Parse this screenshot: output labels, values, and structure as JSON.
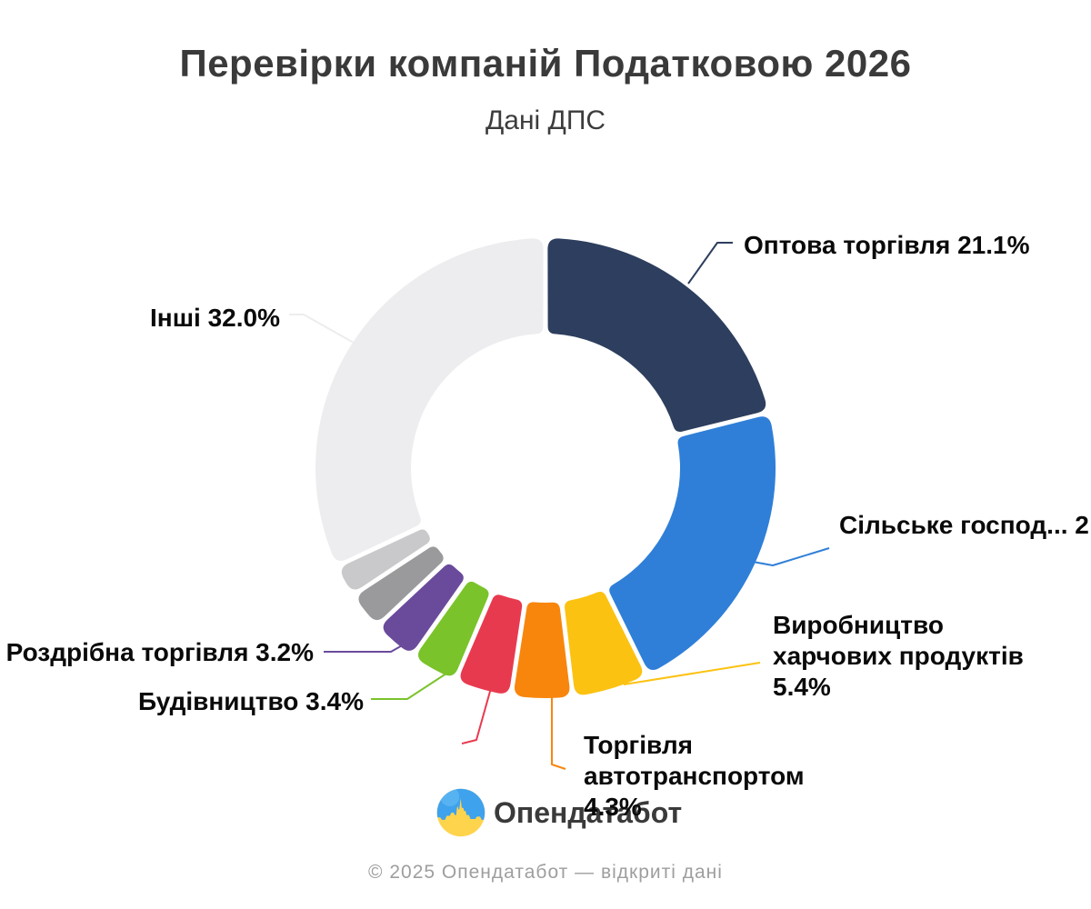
{
  "header": {
    "title": "Перевірки компаній Податковою 2026",
    "subtitle": "Дані ДПС"
  },
  "branding": {
    "logo_text": "Опендатабот"
  },
  "footer": {
    "text": "© 2025 Опендатабот — відкриті дані"
  },
  "chart_data": {
    "type": "pie",
    "subtype": "donut",
    "title": "Перевірки компаній Податковою 2026",
    "subtitle": "Дані ДПС",
    "unit": "percent",
    "rotation": "clockwise-from-top",
    "legend": "none",
    "slices": [
      {
        "name": "Оптова торгівля",
        "value": 21.1,
        "color": "#2d3e5e",
        "label": "Оптова торгівля 21.1%"
      },
      {
        "name": "Сільське господ...",
        "value": 21.6,
        "value_estimated": true,
        "color": "#2f7fd8",
        "label": "Сільське господ... 2"
      },
      {
        "name": "Виробництво харчових продуктів",
        "value": 5.4,
        "color": "#fcc211",
        "label": "Виробництво\nхарчових продуктів\n5.4%"
      },
      {
        "name": "Торгівля автотранспортом",
        "value": 4.3,
        "color": "#f8860d",
        "label": "Торгівля\nавтотранспортом\n4.3%"
      },
      {
        "name": "",
        "value": 4.0,
        "value_estimated": true,
        "color": "#e83a4f",
        "label": ""
      },
      {
        "name": "Будівництво",
        "value": 3.4,
        "color": "#7ac32a",
        "label": "Будівництво 3.4%"
      },
      {
        "name": "Роздрібна торгівля",
        "value": 3.2,
        "color": "#6a4b9b",
        "label": "Роздрібна торгівля 3.2%"
      },
      {
        "name": "",
        "value": 2.7,
        "value_estimated": true,
        "color": "#9a9a9c",
        "label": ""
      },
      {
        "name": "",
        "value": 2.3,
        "value_estimated": true,
        "color": "#c9c9cb",
        "label": ""
      },
      {
        "name": "Інші",
        "value": 32.0,
        "color": "#ededef",
        "label": "Інші 32.0%"
      }
    ]
  }
}
